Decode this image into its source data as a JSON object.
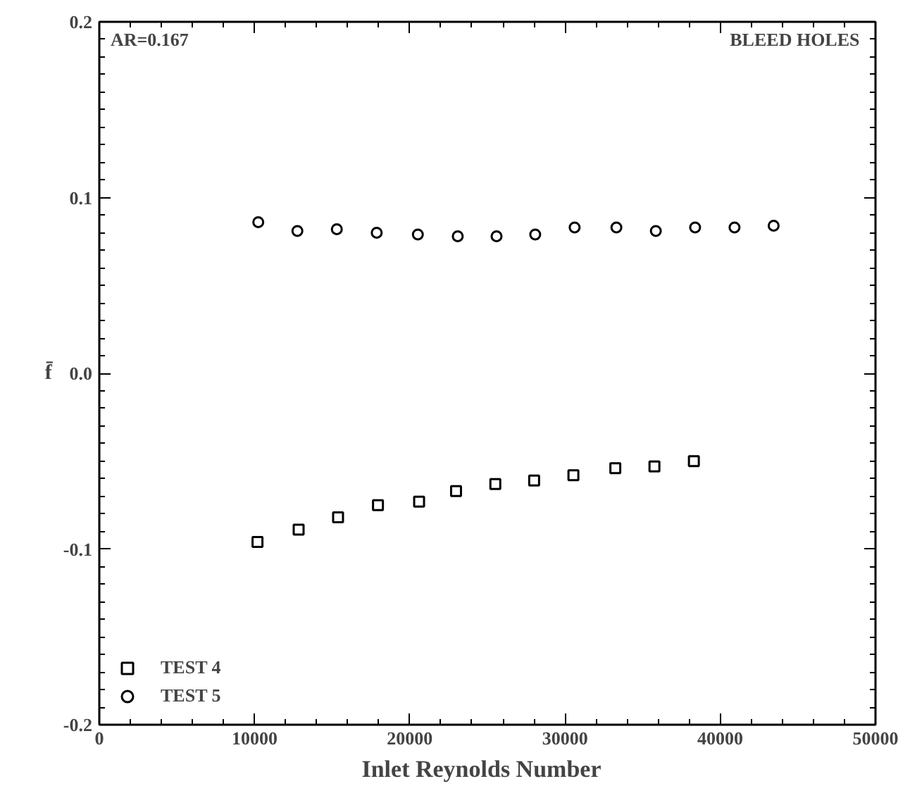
{
  "chart_data": {
    "type": "scatter",
    "xlabel": "Inlet  Reynolds  Number",
    "ylabel": "f̄",
    "annotations": [
      "AR=0.167",
      "BLEED  HOLES"
    ],
    "xlim": [
      0,
      50000
    ],
    "xticks": [
      0,
      10000,
      20000,
      30000,
      40000,
      50000
    ],
    "ylim": [
      -0.2,
      0.2
    ],
    "yticks": [
      {
        "value": -0.2,
        "label": "-0.2"
      },
      {
        "value": -0.1,
        "label": "-0.1"
      },
      {
        "value": 0,
        "label": "0.0"
      },
      {
        "value": 0.1,
        "label": "0.1"
      },
      {
        "value": 0.2,
        "label": "0.2"
      }
    ],
    "grid": false,
    "legend": "bottom left",
    "series": [
      {
        "name": "TEST 4",
        "color": "#000000",
        "marker": "square",
        "x": [
          10190,
          12840,
          15380,
          17950,
          20600,
          22980,
          25510,
          28010,
          30540,
          33240,
          35760,
          38300
        ],
        "values": [
          -0.096,
          -0.089,
          -0.082,
          -0.075,
          -0.073,
          -0.067,
          -0.063,
          -0.061,
          -0.058,
          -0.054,
          -0.053,
          -0.05
        ]
      },
      {
        "name": "TEST 5",
        "color": "#000000",
        "marker": "circle",
        "x": [
          10240,
          12760,
          15300,
          17870,
          20520,
          23090,
          25590,
          28080,
          30620,
          33310,
          35850,
          38380,
          40920,
          43440
        ],
        "values": [
          0.086,
          0.081,
          0.082,
          0.08,
          0.079,
          0.078,
          0.078,
          0.079,
          0.083,
          0.083,
          0.081,
          0.083,
          0.083,
          0.084
        ]
      }
    ]
  }
}
